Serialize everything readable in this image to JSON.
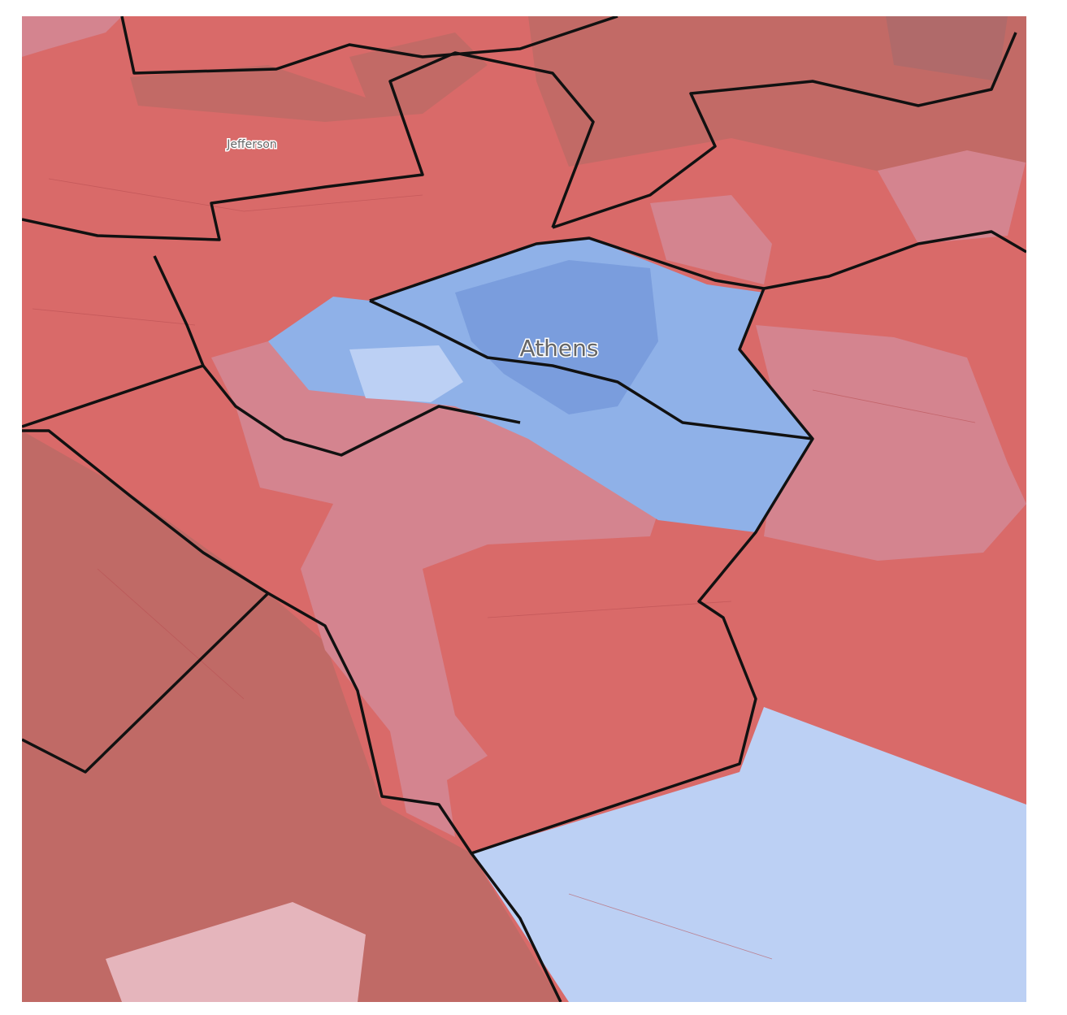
{
  "labels": {
    "jefferson": "Jefferson",
    "athens": "Athens"
  }
}
